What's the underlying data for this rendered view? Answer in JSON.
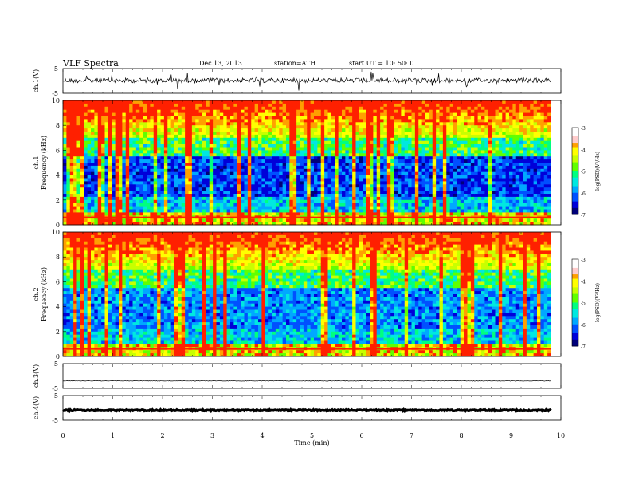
{
  "header": {
    "title": "VLF  Spectra",
    "date": "Dec.13, 2013",
    "station": "station=ATH",
    "start": "start  UT =   10: 50: 0"
  },
  "chart_data": {
    "type": "heatmap",
    "xlabel": "Time  (min)",
    "xlim": [
      0,
      10
    ],
    "xticks": [
      "0",
      "1",
      "2",
      "3",
      "4",
      "5",
      "6",
      "7",
      "8",
      "9",
      "10"
    ],
    "data_end_min": 9.8,
    "panels": [
      {
        "name": "ch1-waveform",
        "type": "line",
        "ylabel": "ch.1(V)",
        "ylim": [
          -5,
          5
        ],
        "yticks": [
          "5",
          "-5"
        ],
        "level": 0.2,
        "noise": "high"
      },
      {
        "name": "ch1-spectrogram",
        "type": "heatmap",
        "ylabel_top": "ch.1",
        "ylabel": "Frequency  (kHz)",
        "ylim": [
          0,
          10
        ],
        "yticks": [
          "0",
          "2",
          "4",
          "6",
          "8",
          "10"
        ],
        "colorbar": {
          "label": "log(PSD)(V²/Hz)",
          "range": [
            -7,
            -3
          ],
          "ticks": [
            "-3",
            "-4",
            "-5",
            "-6",
            "-7"
          ]
        }
      },
      {
        "name": "ch2-spectrogram",
        "type": "heatmap",
        "ylabel_top": "ch.2",
        "ylabel": "Frequency  (kHz)",
        "ylim": [
          0,
          10
        ],
        "yticks": [
          "0",
          "2",
          "4",
          "6",
          "8",
          "10"
        ],
        "colorbar": {
          "label": "log(PSD)(V²/Hz)",
          "range": [
            -7,
            -3
          ],
          "ticks": [
            "-3",
            "-4",
            "-5",
            "-6",
            "-7"
          ]
        }
      },
      {
        "name": "ch3-waveform",
        "type": "line",
        "ylabel": "ch.3(V)",
        "ylim": [
          -5,
          5
        ],
        "yticks": [
          "5",
          "-5"
        ],
        "level": -2.0,
        "noise": "low"
      },
      {
        "name": "ch4-waveform",
        "type": "line",
        "ylabel": "ch.4(V)",
        "ylim": [
          -5,
          5
        ],
        "yticks": [
          "5",
          "-5"
        ],
        "level": -1.0,
        "noise": "thick"
      }
    ]
  },
  "colors": {
    "cmap": [
      "#000066",
      "#0000cc",
      "#0066ff",
      "#00ccff",
      "#00ff99",
      "#66ff00",
      "#ffff00",
      "#ff9900",
      "#ff0000",
      "#ffcccc",
      "#ffffff"
    ]
  }
}
